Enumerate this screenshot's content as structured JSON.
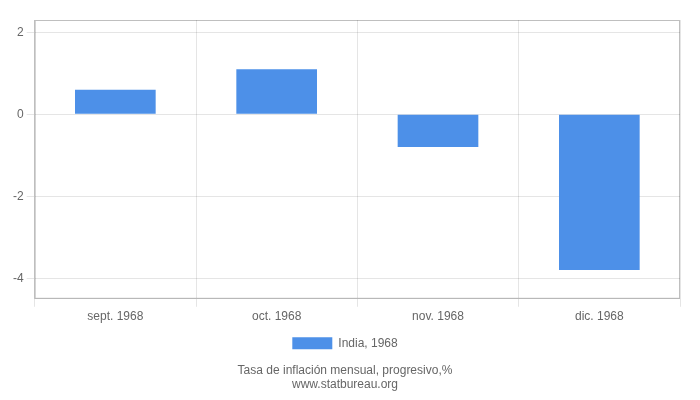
{
  "chart_data": {
    "type": "bar",
    "subtitle": "Tasa de inflación mensual, progresivo,%",
    "source": "www.statbureau.org",
    "categories": [
      "sept. 1968",
      "oct. 1968",
      "nov. 1968",
      "dic. 1968"
    ],
    "series": [
      {
        "name": "India, 1968",
        "color": "#4d90e8",
        "values": [
          0.6,
          1.1,
          -0.8,
          -3.8
        ]
      }
    ],
    "ylim": [
      -4.5,
      2.3
    ],
    "yticks": [
      -4,
      -2,
      0,
      2
    ],
    "grid": true,
    "legend": "bottom"
  }
}
